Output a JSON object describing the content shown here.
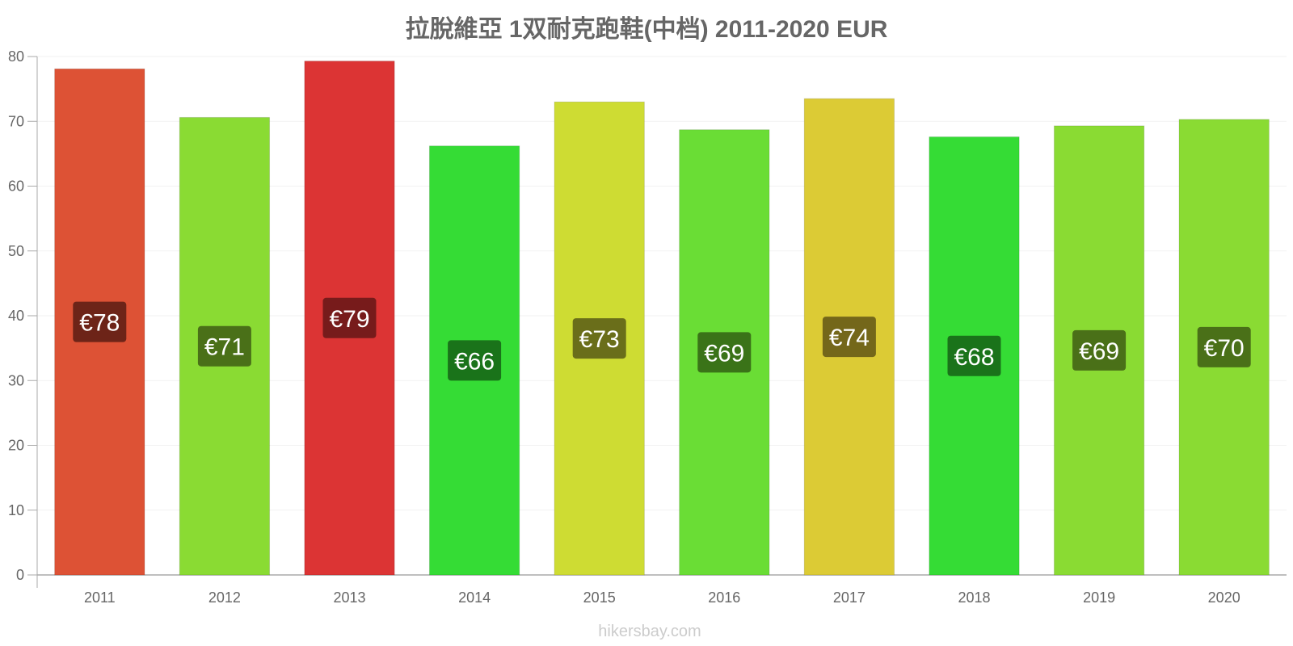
{
  "chart_data": {
    "type": "bar",
    "title": "拉脫維亞 1双耐克跑鞋(中档) 2011-2020 EUR",
    "categories": [
      "2011",
      "2012",
      "2013",
      "2014",
      "2015",
      "2016",
      "2017",
      "2018",
      "2019",
      "2020"
    ],
    "values": [
      78.1,
      70.6,
      79.3,
      66.2,
      73.0,
      68.7,
      73.5,
      67.6,
      69.3,
      70.3
    ],
    "value_labels": [
      "€78",
      "€71",
      "€79",
      "€66",
      "€73",
      "€69",
      "€74",
      "€68",
      "€69",
      "€70"
    ],
    "bar_colors": [
      "#dd5235",
      "#8adb33",
      "#dc3434",
      "#35dc35",
      "#cedc33",
      "#6add35",
      "#dccb35",
      "#35dc35",
      "#8adb33",
      "#8adb33"
    ],
    "label_bg_colors": [
      "#6d2418",
      "#4a7018",
      "#771b1b",
      "#1a731a",
      "#6a6e1a",
      "#3a7318",
      "#74671a",
      "#1a731a",
      "#4a7018",
      "#4a7018"
    ],
    "y_ticks": [
      0,
      10,
      20,
      30,
      40,
      50,
      60,
      70,
      80
    ],
    "ylim": [
      0,
      80
    ],
    "xlabel": "",
    "ylabel": "",
    "grid": true,
    "legend": "none"
  },
  "footer": {
    "source": "hikersbay.com"
  }
}
